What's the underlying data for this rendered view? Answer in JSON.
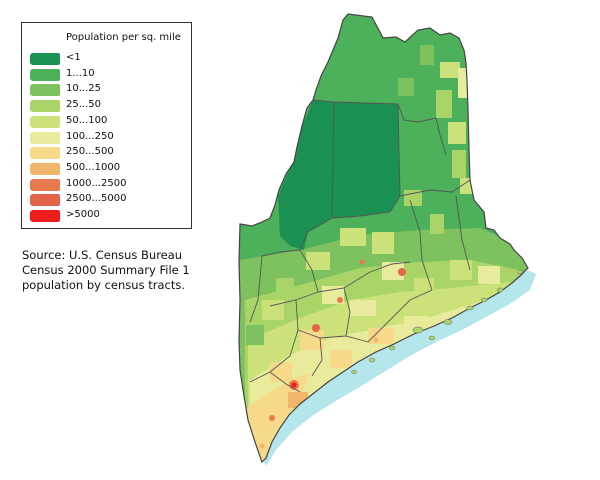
{
  "legend": {
    "title": "Population per sq. mile",
    "items": [
      {
        "label": "<1",
        "color": "#1a9152"
      },
      {
        "label": "1...10",
        "color": "#4db05a"
      },
      {
        "label": "10...25",
        "color": "#7dc25f"
      },
      {
        "label": "25...50",
        "color": "#a8d468"
      },
      {
        "label": "50...100",
        "color": "#cbe27a"
      },
      {
        "label": "100...250",
        "color": "#e8eb9b"
      },
      {
        "label": "250...500",
        "color": "#f7d98a"
      },
      {
        "label": "500...1000",
        "color": "#f2b56c"
      },
      {
        "label": "1000...2500",
        "color": "#e8784e"
      },
      {
        "label": "2500...5000",
        "color": "#e2644a"
      },
      {
        "label": ">5000",
        "color": "#ee1c1c"
      }
    ]
  },
  "source": {
    "line1": "Source: U.S. Census Bureau",
    "line2": "Census 2000 Summary File 1",
    "line3": "population by census tracts."
  },
  "map": {
    "region": "Maine",
    "water_color": "#b5e6ec",
    "border_color": "#555555"
  }
}
